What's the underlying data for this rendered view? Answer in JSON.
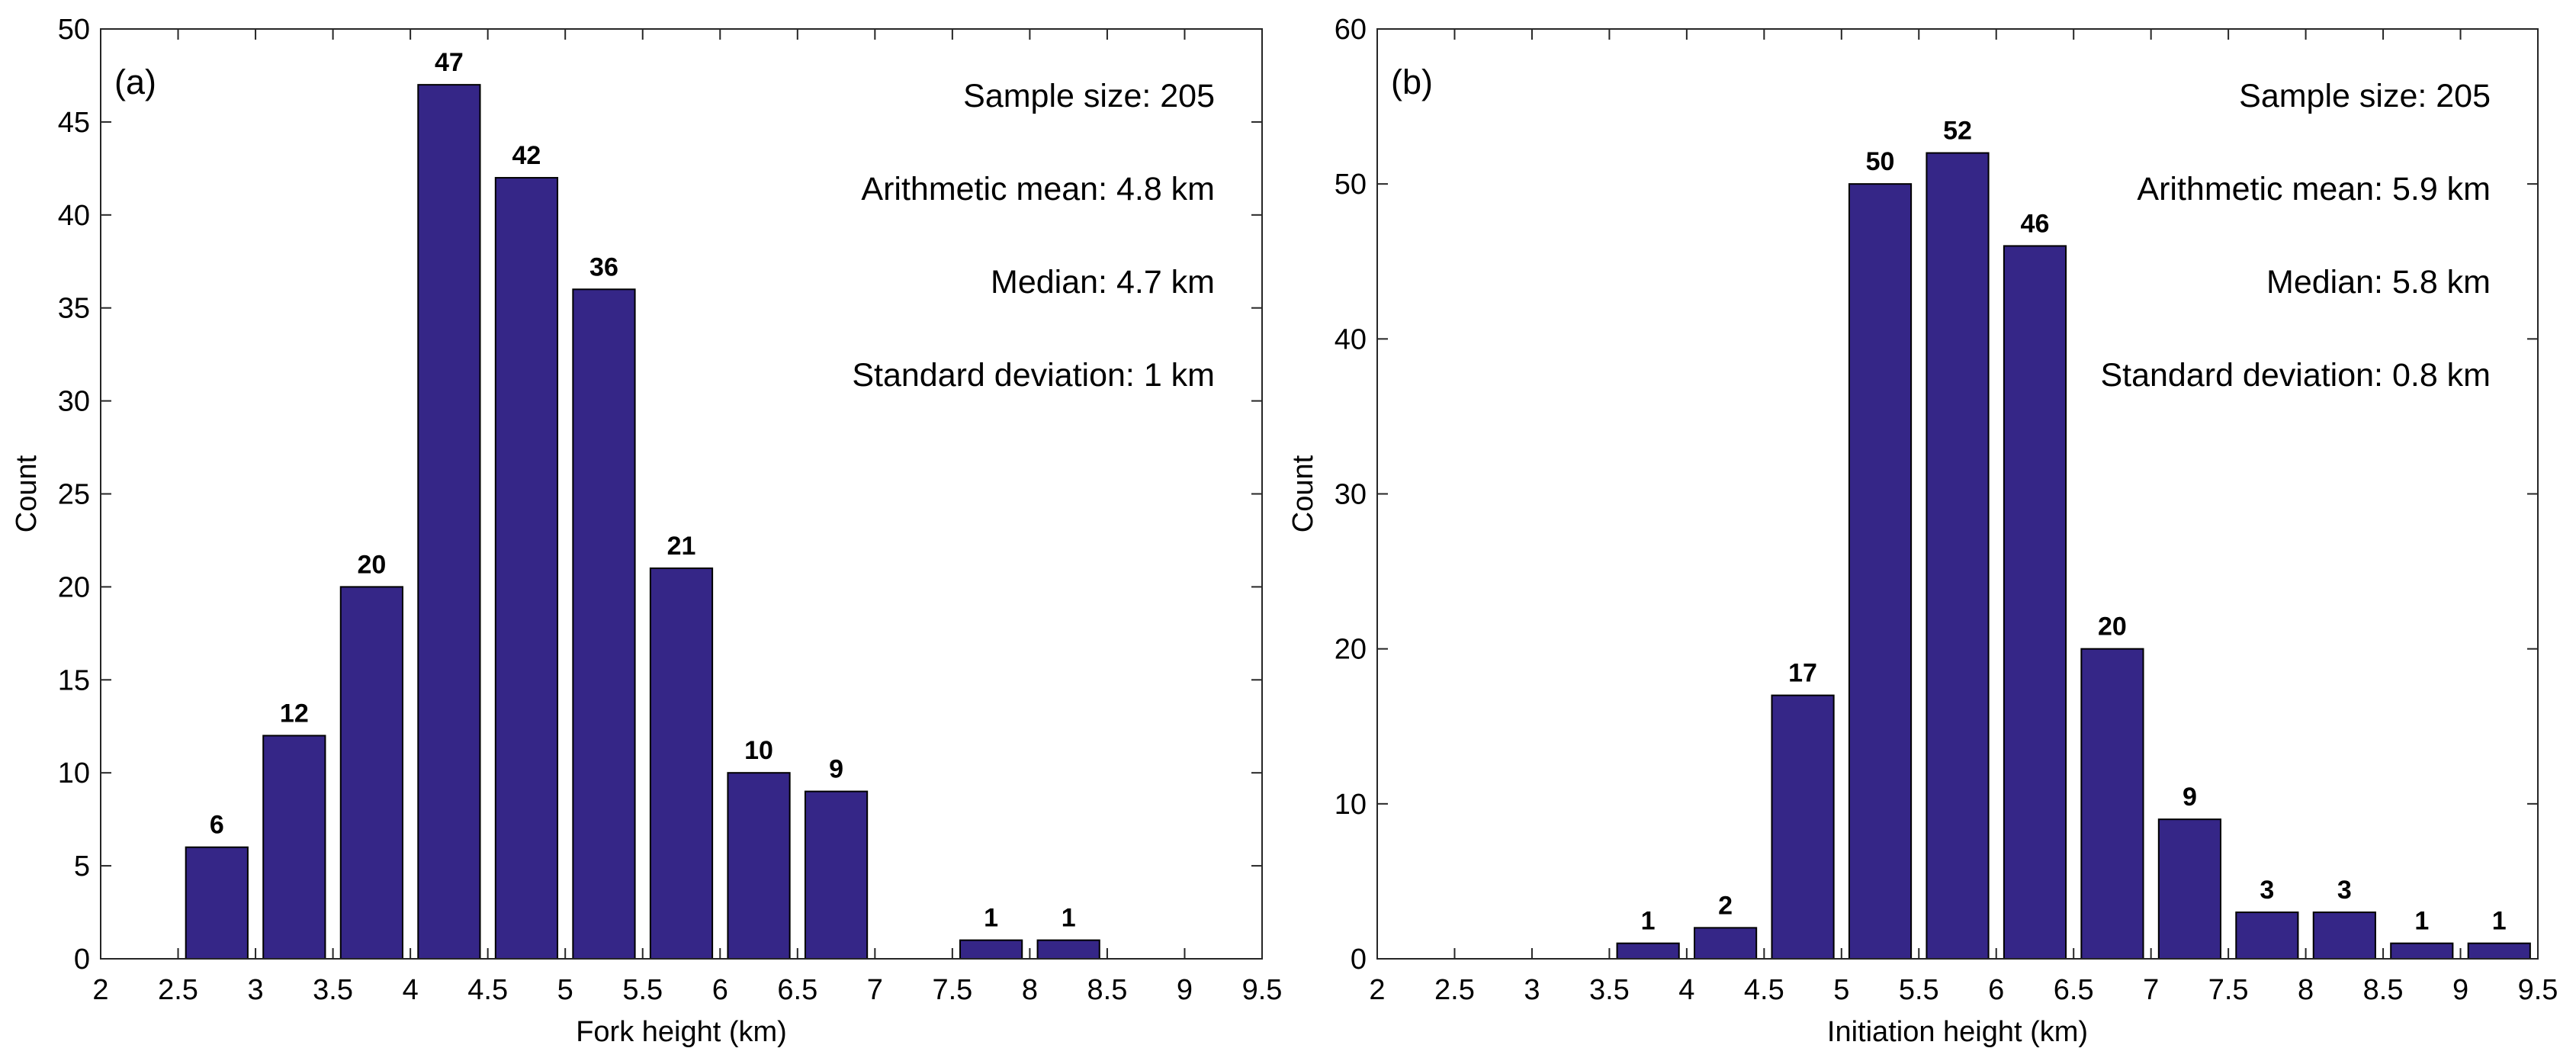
{
  "chart_data": [
    {
      "type": "bar",
      "panel_label": "(a)",
      "xlabel": "Fork height (km)",
      "ylabel": "Count",
      "xlim": [
        2,
        9.5
      ],
      "ylim": [
        0,
        50
      ],
      "xticks": [
        "2",
        "2.5",
        "3",
        "3.5",
        "4",
        "4.5",
        "5",
        "5.5",
        "6",
        "6.5",
        "7",
        "7.5",
        "8",
        "8.5",
        "9",
        "9.5"
      ],
      "yticks": [
        "0",
        "5",
        "10",
        "15",
        "20",
        "25",
        "30",
        "35",
        "40",
        "45",
        "50"
      ],
      "bins": [
        {
          "center": 2.75,
          "value": 6,
          "label": "6"
        },
        {
          "center": 3.25,
          "value": 12,
          "label": "12"
        },
        {
          "center": 3.75,
          "value": 20,
          "label": "20"
        },
        {
          "center": 4.25,
          "value": 47,
          "label": "47"
        },
        {
          "center": 4.75,
          "value": 42,
          "label": "42"
        },
        {
          "center": 5.25,
          "value": 36,
          "label": "36"
        },
        {
          "center": 5.75,
          "value": 21,
          "label": "21"
        },
        {
          "center": 6.25,
          "value": 10,
          "label": "10"
        },
        {
          "center": 6.75,
          "value": 9,
          "label": "9"
        },
        {
          "center": 7.75,
          "value": 1,
          "label": "1"
        },
        {
          "center": 8.25,
          "value": 1,
          "label": "1"
        }
      ],
      "stats": [
        "Sample size: 205",
        "Arithmetic mean: 4.8 km",
        "Median: 4.7 km",
        "Standard deviation: 1 km"
      ],
      "bar_color": "#352687"
    },
    {
      "type": "bar",
      "panel_label": "(b)",
      "xlabel": "Initiation height (km)",
      "ylabel": "Count",
      "xlim": [
        2,
        9.5
      ],
      "ylim": [
        0,
        60
      ],
      "xticks": [
        "2",
        "2.5",
        "3",
        "3.5",
        "4",
        "4.5",
        "5",
        "5.5",
        "6",
        "6.5",
        "7",
        "7.5",
        "8",
        "8.5",
        "9",
        "9.5"
      ],
      "yticks": [
        "0",
        "10",
        "20",
        "30",
        "40",
        "50",
        "60"
      ],
      "bins": [
        {
          "center": 3.75,
          "value": 1,
          "label": "1"
        },
        {
          "center": 4.25,
          "value": 2,
          "label": "2"
        },
        {
          "center": 4.75,
          "value": 17,
          "label": "17"
        },
        {
          "center": 5.25,
          "value": 50,
          "label": "50"
        },
        {
          "center": 5.75,
          "value": 52,
          "label": "52"
        },
        {
          "center": 6.25,
          "value": 46,
          "label": "46"
        },
        {
          "center": 6.75,
          "value": 20,
          "label": "20"
        },
        {
          "center": 7.25,
          "value": 9,
          "label": "9"
        },
        {
          "center": 7.75,
          "value": 3,
          "label": "3"
        },
        {
          "center": 8.25,
          "value": 3,
          "label": "3"
        },
        {
          "center": 8.75,
          "value": 1,
          "label": "1"
        },
        {
          "center": 9.25,
          "value": 1,
          "label": "1"
        }
      ],
      "stats": [
        "Sample size: 205",
        "Arithmetic mean: 5.9 km",
        "Median: 5.8 km",
        "Standard deviation: 0.8 km"
      ],
      "bar_color": "#352687"
    }
  ]
}
